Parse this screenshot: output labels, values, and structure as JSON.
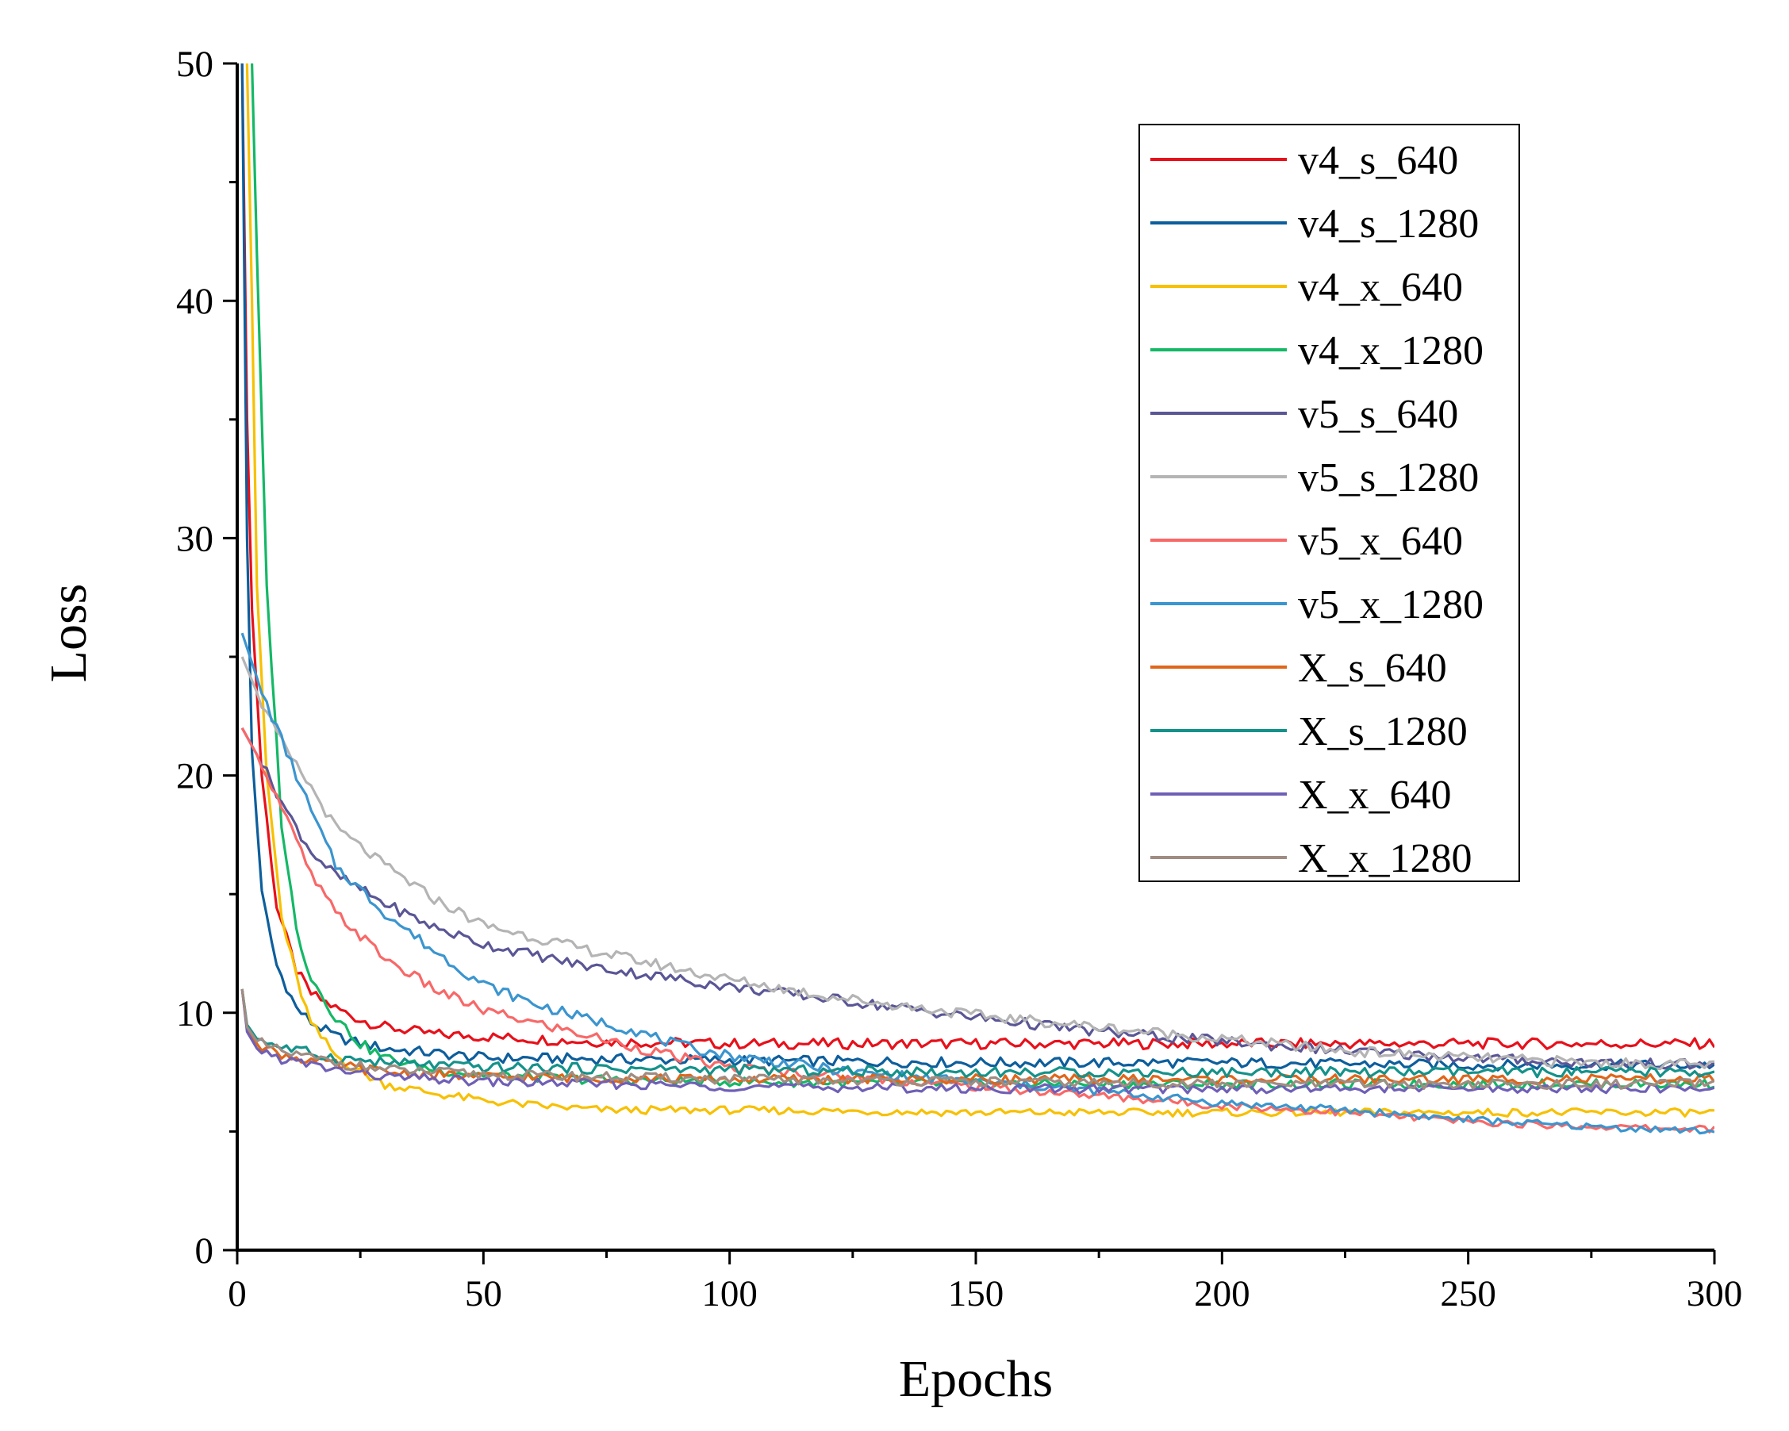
{
  "chart_data": {
    "type": "line",
    "title": "",
    "xlabel": "Epochs",
    "ylabel": "Loss",
    "xlim": [
      0,
      300
    ],
    "ylim": [
      0,
      50
    ],
    "xticks": [
      0,
      50,
      100,
      150,
      200,
      250,
      300
    ],
    "yticks": [
      0,
      10,
      20,
      30,
      40,
      50
    ],
    "grid": false,
    "legend_position": "top-right",
    "series": [
      {
        "name": "v4_s_640",
        "color": "#e8101a",
        "points": [
          [
            1,
            50
          ],
          [
            2,
            35
          ],
          [
            3,
            27
          ],
          [
            5,
            20
          ],
          [
            8,
            14.5
          ],
          [
            12,
            11.8
          ],
          [
            15,
            10.8
          ],
          [
            20,
            10.2
          ],
          [
            25,
            9.7
          ],
          [
            30,
            9.4
          ],
          [
            40,
            9.1
          ],
          [
            50,
            9.0
          ],
          [
            70,
            8.8
          ],
          [
            100,
            8.7
          ],
          [
            150,
            8.7
          ],
          [
            200,
            8.7
          ],
          [
            250,
            8.7
          ],
          [
            300,
            8.7
          ]
        ]
      },
      {
        "name": "v4_s_1280",
        "color": "#0d5e9c",
        "points": [
          [
            1,
            50
          ],
          [
            2,
            30
          ],
          [
            3,
            21
          ],
          [
            5,
            15
          ],
          [
            8,
            12
          ],
          [
            12,
            10.2
          ],
          [
            15,
            9.6
          ],
          [
            20,
            9.0
          ],
          [
            25,
            8.7
          ],
          [
            30,
            8.5
          ],
          [
            40,
            8.3
          ],
          [
            50,
            8.1
          ],
          [
            100,
            8.0
          ],
          [
            150,
            7.9
          ],
          [
            200,
            7.9
          ],
          [
            250,
            7.8
          ],
          [
            300,
            7.8
          ]
        ]
      },
      {
        "name": "v4_x_640",
        "color": "#f7c000",
        "points": [
          [
            2,
            50
          ],
          [
            3,
            40
          ],
          [
            4,
            28
          ],
          [
            6,
            20
          ],
          [
            9,
            14
          ],
          [
            12,
            11.5
          ],
          [
            15,
            9.5
          ],
          [
            20,
            8.2
          ],
          [
            25,
            7.5
          ],
          [
            30,
            7.0
          ],
          [
            40,
            6.6
          ],
          [
            50,
            6.3
          ],
          [
            60,
            6.1
          ],
          [
            75,
            5.9
          ],
          [
            100,
            5.9
          ],
          [
            150,
            5.8
          ],
          [
            200,
            5.8
          ],
          [
            250,
            5.8
          ],
          [
            300,
            5.8
          ]
        ]
      },
      {
        "name": "v4_x_1280",
        "color": "#14b866",
        "points": [
          [
            3,
            50
          ],
          [
            4,
            42
          ],
          [
            6,
            28
          ],
          [
            9,
            18
          ],
          [
            12,
            13.5
          ],
          [
            15,
            11.5
          ],
          [
            20,
            9.8
          ],
          [
            25,
            8.7
          ],
          [
            30,
            8.1
          ],
          [
            40,
            7.6
          ],
          [
            50,
            7.4
          ],
          [
            70,
            7.2
          ],
          [
            100,
            7.1
          ],
          [
            150,
            7.0
          ],
          [
            200,
            7.0
          ],
          [
            250,
            7.0
          ],
          [
            300,
            7.0
          ]
        ]
      },
      {
        "name": "v5_s_640",
        "color": "#5a5696",
        "points": [
          [
            1,
            22
          ],
          [
            5,
            20.5
          ],
          [
            10,
            18.5
          ],
          [
            15,
            16.8
          ],
          [
            20,
            15.8
          ],
          [
            30,
            14.6
          ],
          [
            40,
            13.6
          ],
          [
            50,
            12.9
          ],
          [
            70,
            12.0
          ],
          [
            100,
            11.1
          ],
          [
            120,
            10.6
          ],
          [
            150,
            9.8
          ],
          [
            175,
            9.2
          ],
          [
            200,
            8.8
          ],
          [
            225,
            8.4
          ],
          [
            250,
            8.1
          ],
          [
            275,
            7.9
          ],
          [
            300,
            7.8
          ]
        ]
      },
      {
        "name": "v5_s_1280",
        "color": "#b4b4b4",
        "points": [
          [
            1,
            25
          ],
          [
            5,
            23
          ],
          [
            10,
            21
          ],
          [
            15,
            19.5
          ],
          [
            20,
            17.8
          ],
          [
            30,
            16.2
          ],
          [
            40,
            14.8
          ],
          [
            50,
            13.7
          ],
          [
            70,
            12.7
          ],
          [
            100,
            11.4
          ],
          [
            120,
            10.7
          ],
          [
            150,
            9.9
          ],
          [
            175,
            9.4
          ],
          [
            200,
            8.9
          ],
          [
            225,
            8.4
          ],
          [
            250,
            8.1
          ],
          [
            275,
            7.9
          ],
          [
            300,
            7.8
          ]
        ]
      },
      {
        "name": "v5_x_640",
        "color": "#f86868",
        "points": [
          [
            1,
            22
          ],
          [
            5,
            20.5
          ],
          [
            10,
            18.2
          ],
          [
            15,
            15.8
          ],
          [
            20,
            14.2
          ],
          [
            30,
            12.3
          ],
          [
            40,
            11.0
          ],
          [
            50,
            10.1
          ],
          [
            60,
            9.6
          ],
          [
            70,
            9.1
          ],
          [
            80,
            8.6
          ],
          [
            90,
            8.1
          ],
          [
            100,
            7.7
          ],
          [
            125,
            7.3
          ],
          [
            150,
            6.9
          ],
          [
            175,
            6.5
          ],
          [
            200,
            6.1
          ],
          [
            225,
            5.8
          ],
          [
            250,
            5.4
          ],
          [
            275,
            5.2
          ],
          [
            300,
            5.1
          ]
        ]
      },
      {
        "name": "v5_x_1280",
        "color": "#3b95cf",
        "points": [
          [
            1,
            26
          ],
          [
            5,
            23.5
          ],
          [
            10,
            21
          ],
          [
            15,
            18.5
          ],
          [
            20,
            16.2
          ],
          [
            30,
            14.2
          ],
          [
            40,
            12.6
          ],
          [
            50,
            11.2
          ],
          [
            60,
            10.4
          ],
          [
            70,
            9.8
          ],
          [
            80,
            9.3
          ],
          [
            90,
            8.6
          ],
          [
            100,
            8.2
          ],
          [
            125,
            7.5
          ],
          [
            150,
            7.1
          ],
          [
            175,
            6.7
          ],
          [
            200,
            6.2
          ],
          [
            225,
            5.9
          ],
          [
            250,
            5.5
          ],
          [
            275,
            5.2
          ],
          [
            300,
            5.0
          ]
        ]
      },
      {
        "name": "X_s_640",
        "color": "#e0661a",
        "points": [
          [
            1,
            11
          ],
          [
            2,
            9.3
          ],
          [
            4,
            8.7
          ],
          [
            7,
            8.4
          ],
          [
            10,
            8.2
          ],
          [
            20,
            7.8
          ],
          [
            30,
            7.5
          ],
          [
            50,
            7.3
          ],
          [
            100,
            7.2
          ],
          [
            150,
            7.2
          ],
          [
            200,
            7.2
          ],
          [
            250,
            7.2
          ],
          [
            300,
            7.2
          ]
        ]
      },
      {
        "name": "X_s_1280",
        "color": "#14928a",
        "points": [
          [
            1,
            11
          ],
          [
            2,
            9.5
          ],
          [
            4,
            8.9
          ],
          [
            7,
            8.7
          ],
          [
            10,
            8.5
          ],
          [
            20,
            8.1
          ],
          [
            30,
            7.9
          ],
          [
            50,
            7.7
          ],
          [
            100,
            7.6
          ],
          [
            150,
            7.5
          ],
          [
            200,
            7.5
          ],
          [
            250,
            7.5
          ],
          [
            300,
            7.5
          ]
        ]
      },
      {
        "name": "X_x_640",
        "color": "#6f5fb6",
        "points": [
          [
            1,
            11
          ],
          [
            2,
            9.2
          ],
          [
            4,
            8.5
          ],
          [
            7,
            8.2
          ],
          [
            10,
            8.0
          ],
          [
            20,
            7.6
          ],
          [
            30,
            7.3
          ],
          [
            50,
            7.1
          ],
          [
            100,
            6.9
          ],
          [
            150,
            6.8
          ],
          [
            200,
            6.8
          ],
          [
            250,
            6.8
          ],
          [
            300,
            6.8
          ]
        ]
      },
      {
        "name": "X_x_1280",
        "color": "#a08c82",
        "points": [
          [
            1,
            11
          ],
          [
            2,
            9.4
          ],
          [
            4,
            8.8
          ],
          [
            7,
            8.5
          ],
          [
            10,
            8.3
          ],
          [
            20,
            7.9
          ],
          [
            30,
            7.6
          ],
          [
            50,
            7.4
          ],
          [
            100,
            7.2
          ],
          [
            150,
            7.1
          ],
          [
            200,
            7.0
          ],
          [
            250,
            7.0
          ],
          [
            300,
            7.0
          ]
        ]
      }
    ]
  }
}
